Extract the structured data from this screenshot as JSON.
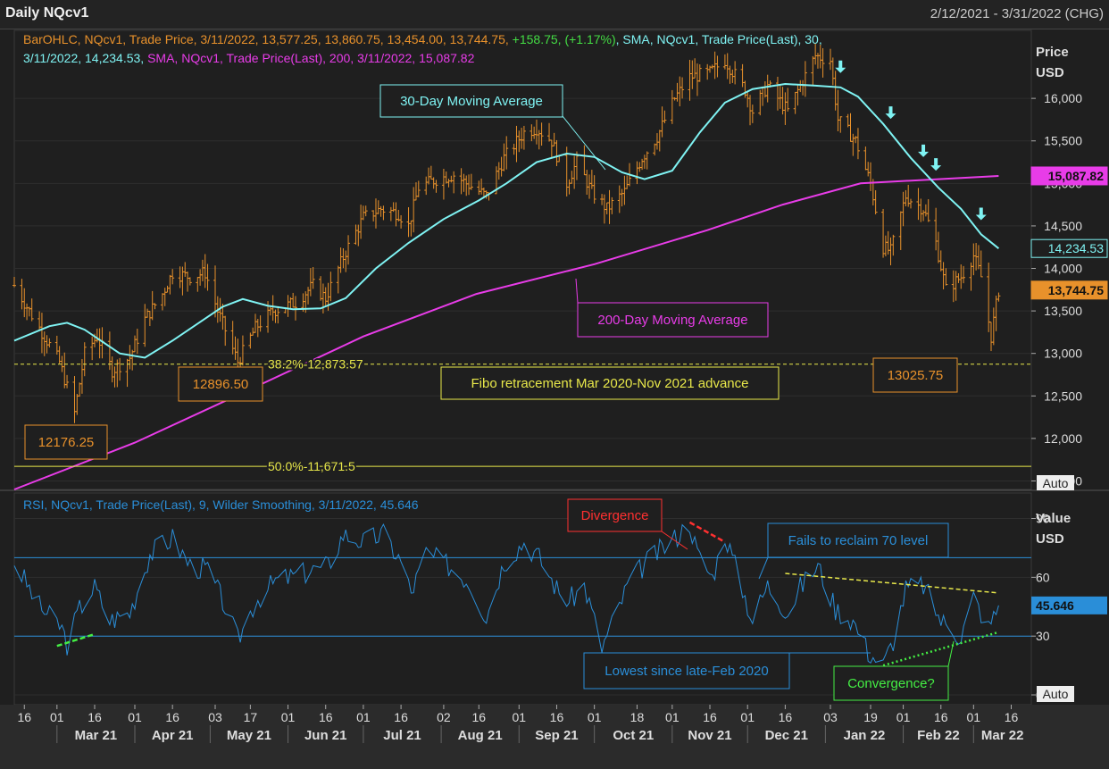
{
  "window": {
    "title": "Daily NQcv1",
    "date_range": "2/12/2021 - 3/31/2022 (CHG)"
  },
  "colors": {
    "bars": "#e8912b",
    "sma30": "#7ff3f3",
    "sma200": "#e83ce8",
    "rsi": "#2a8ed8",
    "fibo": "#e8e84a",
    "divergence": "#ff3030",
    "convergence": "#44ee44",
    "arrow": "#7ff3f3"
  },
  "price_pane": {
    "header_parts": [
      {
        "text": "BarOHLC, NQcv1, Trade Price, 3/11/2022, 13,577.25, 13,860.75, 13,454.00, 13,744.75, ",
        "color": "#e8912b"
      },
      {
        "text": "+158.75, (+1.17%)",
        "color": "#44dd44"
      },
      {
        "text": ", SMA, NQcv1, Trade Price(Last),  30,",
        "color": "#7ff3f3"
      }
    ],
    "header_line2_parts": [
      {
        "text": "3/11/2022, 14,234.53, ",
        "color": "#7ff3f3"
      },
      {
        "text": "SMA, NQcv1, Trade Price(Last),  200, 3/11/2022, 15,087.82",
        "color": "#e83ce8"
      }
    ],
    "axis_title": "Price",
    "axis_unit": "USD",
    "auto_label": "Auto",
    "y_ticks": [
      "16,000",
      "15,500",
      "15,000",
      "14,500",
      "14,000",
      "13,500",
      "13,000",
      "12,500",
      "12,000",
      "11,500"
    ],
    "y_tick_values": [
      16000,
      15500,
      15000,
      14500,
      14000,
      13500,
      13000,
      12500,
      12000,
      11500
    ],
    "tags": [
      {
        "text": "15,087.82",
        "value": 15087.82,
        "bg": "#e83ce8",
        "fg": "#111"
      },
      {
        "text": "14,234.53",
        "value": 14234.53,
        "bg": "#1f1f1f",
        "fg": "#7ff3f3"
      },
      {
        "text": "13,744.75",
        "value": 13744.75,
        "bg": "#e8912b",
        "fg": "#111"
      }
    ],
    "fibo_lines": [
      {
        "label": "38.2%-12,873.57",
        "value": 12873.57,
        "dashed": true
      },
      {
        "label": "50.0%-11,671.5",
        "value": 11671.5,
        "dashed": false
      }
    ],
    "annotations": {
      "sma30": "30-Day Moving Average",
      "sma200": "200-Day Moving Average",
      "fibo": "Fibo retracement Mar 2020-Nov 2021 advance",
      "low1": "12176.25",
      "low2": "12896.50",
      "low3": "13025.75"
    }
  },
  "rsi_pane": {
    "header": "RSI, NQcv1, Trade Price(Last),  9, Wilder Smoothing, 3/11/2022, 45.646",
    "axis_title": "Value",
    "axis_unit": "USD",
    "auto_label": "Auto",
    "y_ticks": [
      "90",
      "60",
      "30",
      "0"
    ],
    "y_tick_values": [
      90,
      60,
      30,
      0
    ],
    "levels": [
      70,
      30
    ],
    "tag": {
      "text": "45.646",
      "value": 45.646
    },
    "annotations": {
      "divergence": "Divergence",
      "fails": "Fails to reclaim 70 level",
      "lowest": "Lowest since late-Feb 2020",
      "convergence": "Convergence?"
    }
  },
  "x_axis": {
    "day_ticks": [
      "16",
      "01",
      "16",
      "01",
      "16",
      "03",
      "17",
      "01",
      "16",
      "01",
      "16",
      "02",
      "16",
      "01",
      "16",
      "01",
      "18",
      "01",
      "16",
      "01",
      "16",
      "03",
      "19",
      "01",
      "16",
      "01",
      "16"
    ],
    "day_tick_dates": [
      "2021-02-16",
      "2021-03-01",
      "2021-03-16",
      "2021-04-01",
      "2021-04-16",
      "2021-05-03",
      "2021-05-17",
      "2021-06-01",
      "2021-06-16",
      "2021-07-01",
      "2021-07-16",
      "2021-08-02",
      "2021-08-16",
      "2021-09-01",
      "2021-09-16",
      "2021-10-01",
      "2021-10-18",
      "2021-11-01",
      "2021-11-16",
      "2021-12-01",
      "2021-12-16",
      "2022-01-03",
      "2022-01-19",
      "2022-02-01",
      "2022-02-16",
      "2022-03-01",
      "2022-03-16"
    ],
    "months": [
      "Mar 21",
      "Apr 21",
      "May 21",
      "Jun 21",
      "Jul 21",
      "Aug 21",
      "Sep 21",
      "Oct 21",
      "Nov 21",
      "Dec 21",
      "Jan 22",
      "Feb 22",
      "Mar 22"
    ],
    "month_dates": [
      "2021-03-01",
      "2021-04-01",
      "2021-05-01",
      "2021-06-01",
      "2021-07-01",
      "2021-08-01",
      "2021-09-01",
      "2021-10-01",
      "2021-11-01",
      "2021-12-01",
      "2022-01-01",
      "2022-02-01",
      "2022-03-01"
    ]
  },
  "chart_data": {
    "type": "line",
    "title": "Daily NQcv1",
    "x_range": [
      "2021-02-12",
      "2022-03-24"
    ],
    "price_ylim": [
      11400,
      16800
    ],
    "rsi_ylim": [
      -5,
      103
    ],
    "close_keypoints": [
      [
        "2021-02-12",
        13800
      ],
      [
        "2021-02-22",
        13300
      ],
      [
        "2021-03-02",
        12900
      ],
      [
        "2021-03-08",
        12300
      ],
      [
        "2021-03-12",
        13000
      ],
      [
        "2021-03-17",
        13200
      ],
      [
        "2021-03-23",
        12800
      ],
      [
        "2021-03-30",
        12950
      ],
      [
        "2021-04-05",
        13400
      ],
      [
        "2021-04-12",
        13700
      ],
      [
        "2021-04-16",
        13950
      ],
      [
        "2021-04-23",
        13900
      ],
      [
        "2021-04-29",
        13950
      ],
      [
        "2021-05-04",
        13500
      ],
      [
        "2021-05-12",
        12900
      ],
      [
        "2021-05-19",
        13300
      ],
      [
        "2021-05-26",
        13500
      ],
      [
        "2021-06-04",
        13600
      ],
      [
        "2021-06-11",
        13800
      ],
      [
        "2021-06-16",
        13650
      ],
      [
        "2021-06-24",
        14200
      ],
      [
        "2021-07-01",
        14600
      ],
      [
        "2021-07-08",
        14700
      ],
      [
        "2021-07-15",
        14650
      ],
      [
        "2021-07-19",
        14500
      ],
      [
        "2021-07-23",
        14950
      ],
      [
        "2021-07-30",
        15050
      ],
      [
        "2021-08-06",
        15100
      ],
      [
        "2021-08-11",
        15000
      ],
      [
        "2021-08-19",
        14850
      ],
      [
        "2021-08-26",
        15300
      ],
      [
        "2021-09-03",
        15600
      ],
      [
        "2021-09-08",
        15650
      ],
      [
        "2021-09-14",
        15500
      ],
      [
        "2021-09-20",
        15000
      ],
      [
        "2021-09-24",
        15250
      ],
      [
        "2021-09-30",
        14900
      ],
      [
        "2021-10-06",
        14700
      ],
      [
        "2021-10-13",
        14900
      ],
      [
        "2021-10-20",
        15300
      ],
      [
        "2021-10-26",
        15550
      ],
      [
        "2021-11-02",
        16000
      ],
      [
        "2021-11-08",
        16250
      ],
      [
        "2021-11-16",
        16300
      ],
      [
        "2021-11-22",
        16450
      ],
      [
        "2021-11-30",
        16100
      ],
      [
        "2021-12-03",
        15850
      ],
      [
        "2021-12-09",
        16150
      ],
      [
        "2021-12-17",
        15850
      ],
      [
        "2021-12-22",
        16150
      ],
      [
        "2021-12-28",
        16500
      ],
      [
        "2022-01-03",
        16450
      ],
      [
        "2022-01-06",
        15750
      ],
      [
        "2022-01-13",
        15500
      ],
      [
        "2022-01-19",
        15000
      ],
      [
        "2022-01-24",
        14250
      ],
      [
        "2022-01-27",
        14200
      ],
      [
        "2022-02-02",
        14850
      ],
      [
        "2022-02-09",
        14700
      ],
      [
        "2022-02-14",
        14300
      ],
      [
        "2022-02-18",
        13750
      ],
      [
        "2022-02-24",
        13900
      ],
      [
        "2022-03-01",
        14150
      ],
      [
        "2022-03-04",
        13900
      ],
      [
        "2022-03-08",
        13200
      ],
      [
        "2022-03-11",
        13744.75
      ]
    ],
    "lows_labeled": [
      {
        "date": "2021-03-05",
        "value": 12176.25
      },
      {
        "date": "2021-05-13",
        "value": 12896.5
      },
      {
        "date": "2022-02-24",
        "value": 13025.75
      }
    ],
    "sma30": [
      [
        "2021-02-12",
        13150
      ],
      [
        "2021-02-26",
        13320
      ],
      [
        "2021-03-05",
        13360
      ],
      [
        "2021-03-12",
        13280
      ],
      [
        "2021-03-26",
        13000
      ],
      [
        "2021-04-05",
        12950
      ],
      [
        "2021-04-16",
        13150
      ],
      [
        "2021-04-26",
        13350
      ],
      [
        "2021-05-06",
        13550
      ],
      [
        "2021-05-14",
        13640
      ],
      [
        "2021-05-24",
        13560
      ],
      [
        "2021-06-03",
        13520
      ],
      [
        "2021-06-14",
        13530
      ],
      [
        "2021-06-24",
        13650
      ],
      [
        "2021-07-06",
        14000
      ],
      [
        "2021-07-19",
        14300
      ],
      [
        "2021-08-02",
        14580
      ],
      [
        "2021-08-16",
        14800
      ],
      [
        "2021-08-27",
        15000
      ],
      [
        "2021-09-08",
        15250
      ],
      [
        "2021-09-20",
        15350
      ],
      [
        "2021-10-01",
        15310
      ],
      [
        "2021-10-12",
        15130
      ],
      [
        "2021-10-21",
        15050
      ],
      [
        "2021-11-01",
        15150
      ],
      [
        "2021-11-12",
        15600
      ],
      [
        "2021-11-22",
        15950
      ],
      [
        "2021-12-03",
        16110
      ],
      [
        "2021-12-16",
        16170
      ],
      [
        "2021-12-28",
        16150
      ],
      [
        "2022-01-07",
        16130
      ],
      [
        "2022-01-14",
        16020
      ],
      [
        "2022-01-24",
        15700
      ],
      [
        "2022-02-04",
        15300
      ],
      [
        "2022-02-15",
        14950
      ],
      [
        "2022-02-24",
        14700
      ],
      [
        "2022-03-04",
        14400
      ],
      [
        "2022-03-11",
        14234.53
      ]
    ],
    "sma200": [
      [
        "2021-02-12",
        11400
      ],
      [
        "2021-04-01",
        11950
      ],
      [
        "2021-05-15",
        12550
      ],
      [
        "2021-07-01",
        13200
      ],
      [
        "2021-08-15",
        13700
      ],
      [
        "2021-10-01",
        14050
      ],
      [
        "2021-11-15",
        14450
      ],
      [
        "2021-12-15",
        14750
      ],
      [
        "2022-01-15",
        15000
      ],
      [
        "2022-02-15",
        15050
      ],
      [
        "2022-03-11",
        15087.82
      ]
    ],
    "rsi": [
      [
        "2021-02-12",
        68
      ],
      [
        "2021-02-22",
        45
      ],
      [
        "2021-03-03",
        34
      ],
      [
        "2021-03-05",
        26
      ],
      [
        "2021-03-10",
        44
      ],
      [
        "2021-03-16",
        55
      ],
      [
        "2021-03-22",
        38
      ],
      [
        "2021-03-30",
        42
      ],
      [
        "2021-04-07",
        72
      ],
      [
        "2021-04-16",
        80
      ],
      [
        "2021-04-23",
        66
      ],
      [
        "2021-04-30",
        64
      ],
      [
        "2021-05-06",
        48
      ],
      [
        "2021-05-12",
        28
      ],
      [
        "2021-05-19",
        48
      ],
      [
        "2021-05-27",
        58
      ],
      [
        "2021-06-07",
        62
      ],
      [
        "2021-06-17",
        66
      ],
      [
        "2021-06-23",
        82
      ],
      [
        "2021-07-01",
        78
      ],
      [
        "2021-07-09",
        82
      ],
      [
        "2021-07-16",
        68
      ],
      [
        "2021-07-20",
        52
      ],
      [
        "2021-07-26",
        72
      ],
      [
        "2021-08-04",
        66
      ],
      [
        "2021-08-12",
        58
      ],
      [
        "2021-08-19",
        40
      ],
      [
        "2021-08-26",
        68
      ],
      [
        "2021-09-03",
        78
      ],
      [
        "2021-09-09",
        70
      ],
      [
        "2021-09-17",
        52
      ],
      [
        "2021-09-21",
        48
      ],
      [
        "2021-09-27",
        56
      ],
      [
        "2021-10-04",
        24
      ],
      [
        "2021-10-08",
        36
      ],
      [
        "2021-10-15",
        58
      ],
      [
        "2021-10-22",
        68
      ],
      [
        "2021-11-02",
        80
      ],
      [
        "2021-11-08",
        88
      ],
      [
        "2021-11-11",
        72
      ],
      [
        "2021-11-17",
        60
      ],
      [
        "2021-11-22",
        82
      ],
      [
        "2021-11-30",
        50
      ],
      [
        "2021-12-03",
        38
      ],
      [
        "2021-12-09",
        56
      ],
      [
        "2021-12-17",
        42
      ],
      [
        "2021-12-22",
        55
      ],
      [
        "2021-12-29",
        66
      ],
      [
        "2022-01-05",
        44
      ],
      [
        "2022-01-12",
        38
      ],
      [
        "2022-01-18",
        22
      ],
      [
        "2022-01-24",
        15
      ],
      [
        "2022-01-28",
        28
      ],
      [
        "2022-02-02",
        54
      ],
      [
        "2022-02-09",
        56
      ],
      [
        "2022-02-16",
        38
      ],
      [
        "2022-02-24",
        30
      ],
      [
        "2022-03-01",
        50
      ],
      [
        "2022-03-07",
        34
      ],
      [
        "2022-03-11",
        45.646
      ]
    ],
    "annotation_lines": {
      "divergence": [
        [
          "2021-11-08",
          88
        ],
        [
          "2021-11-22",
          78
        ]
      ],
      "fails_resistance": [
        [
          "2021-12-16",
          62
        ],
        [
          "2022-03-11",
          52
        ]
      ],
      "convergence": [
        [
          "2022-01-24",
          15
        ],
        [
          "2022-03-11",
          32
        ]
      ],
      "bottom_divergence": [
        [
          "2021-03-01",
          25
        ],
        [
          "2021-03-16",
          31
        ]
      ]
    },
    "arrows_at": [
      "2022-01-07",
      "2022-01-27",
      "2022-02-09",
      "2022-02-14",
      "2022-03-04"
    ]
  }
}
